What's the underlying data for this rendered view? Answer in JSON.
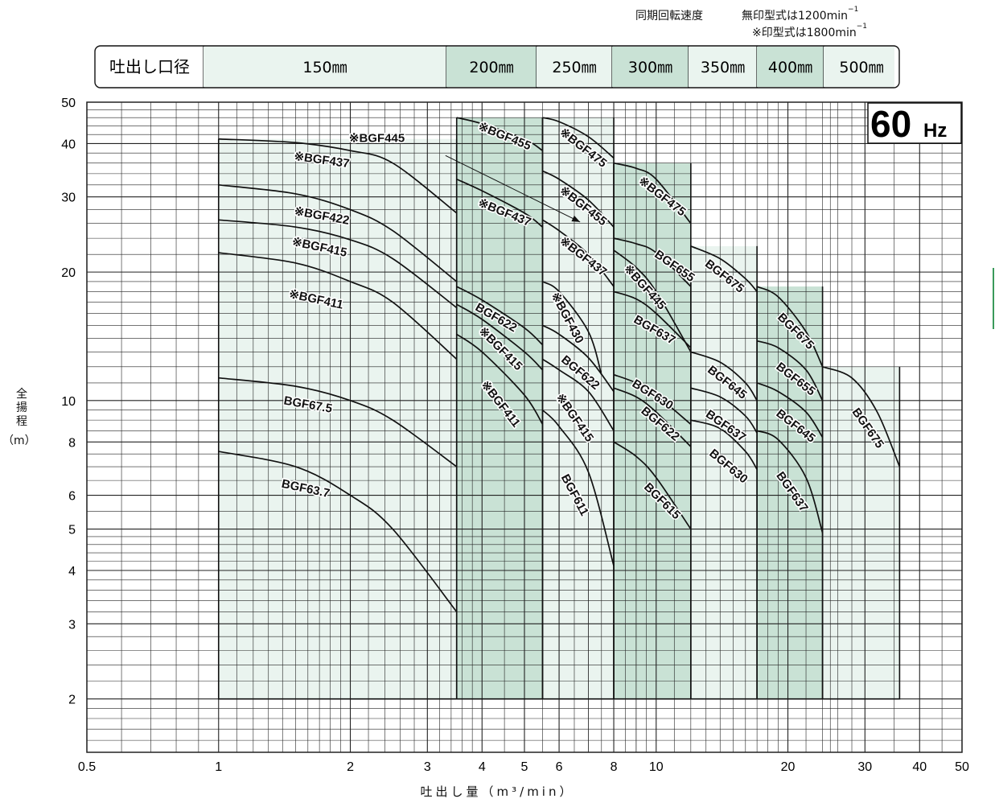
{
  "notes": {
    "speed_title": "同期回転速度",
    "speed_unmarked": "無印型式は1200min",
    "speed_marked": "※印型式は1800min",
    "speed_sup": "−1"
  },
  "header": {
    "label": "吐出し口径",
    "bores": [
      "150㎜",
      "200㎜",
      "250㎜",
      "300㎜",
      "350㎜",
      "400㎜",
      "500㎜"
    ]
  },
  "freq_badge": {
    "value": "60",
    "unit": "Hz"
  },
  "axes": {
    "ylabel_chars": [
      "全",
      "揚",
      "程"
    ],
    "ylabel_unit": "（m）",
    "xlabel": "吐出し量（m³/min）"
  },
  "colors": {
    "light_fill": "#eaf4ef",
    "dark_fill": "#c9e2d5",
    "grid": "#222222",
    "curve": "#111111"
  },
  "chart_data": {
    "type": "line",
    "x_scale": "log",
    "y_scale": "log",
    "xlim": [
      0.5,
      50
    ],
    "ylim": [
      1.5,
      50
    ],
    "x_ticks": [
      0.5,
      1,
      2,
      3,
      4,
      5,
      6,
      8,
      10,
      20,
      30,
      40,
      50
    ],
    "y_ticks": [
      2,
      3,
      4,
      5,
      6,
      8,
      10,
      20,
      30,
      40,
      50
    ],
    "grid": true,
    "bands": [
      {
        "bore": "150㎜",
        "x": [
          1,
          3.5
        ],
        "shade": "light",
        "top": 41
      },
      {
        "bore": "200㎜",
        "x": [
          3.5,
          5.5
        ],
        "shade": "dark",
        "top": 46
      },
      {
        "bore": "250㎜",
        "x": [
          5.5,
          8
        ],
        "shade": "light",
        "top": 46
      },
      {
        "bore": "300㎜",
        "x": [
          8,
          12
        ],
        "shade": "dark",
        "top": 36
      },
      {
        "bore": "350㎜",
        "x": [
          12,
          17
        ],
        "shade": "light",
        "top": 23
      },
      {
        "bore": "400㎜",
        "x": [
          17,
          24
        ],
        "shade": "dark",
        "top": 18.5
      },
      {
        "bore": "500㎜",
        "x": [
          24,
          36
        ],
        "shade": "light",
        "top": 12
      }
    ],
    "series": [
      {
        "name": "※BGF437",
        "x": [
          1,
          1.5,
          2,
          2.5,
          3.5
        ],
        "y": [
          41,
          40.2,
          38.5,
          36,
          27.5
        ]
      },
      {
        "name": "※BGF422",
        "x": [
          1,
          1.5,
          2,
          2.5,
          3.5
        ],
        "y": [
          32,
          30.5,
          28,
          25,
          19
        ]
      },
      {
        "name": "※BGF415",
        "x": [
          1,
          1.5,
          2,
          2.5,
          3.5
        ],
        "y": [
          26.5,
          25.5,
          23.8,
          21.5,
          16.5
        ]
      },
      {
        "name": "※BGF411",
        "x": [
          1,
          1.5,
          2,
          2.5,
          3.5
        ],
        "y": [
          22.2,
          21,
          19,
          17,
          12.5
        ]
      },
      {
        "name": "BGF67.5",
        "x": [
          1,
          1.5,
          2,
          2.5,
          3.5
        ],
        "y": [
          11.3,
          10.8,
          10,
          9,
          7
        ]
      },
      {
        "name": "BGF63.7",
        "x": [
          1,
          1.5,
          2,
          2.5,
          3.5
        ],
        "y": [
          7.6,
          7,
          6,
          5,
          3.2
        ]
      },
      {
        "name": "※BGF455",
        "x": [
          3.5,
          4,
          5,
          5.5
        ],
        "y": [
          46,
          44.5,
          41,
          38.5
        ]
      },
      {
        "name": "※BGF437",
        "x": [
          3.5,
          4,
          5,
          5.5
        ],
        "y": [
          33,
          31,
          27.5,
          25.5
        ]
      },
      {
        "name": "BGF622",
        "x": [
          3.5,
          4,
          5,
          5.5
        ],
        "y": [
          18.5,
          17.2,
          14.8,
          13.5
        ]
      },
      {
        "name": "※BGF415",
        "x": [
          3.5,
          4,
          5,
          5.5
        ],
        "y": [
          16.8,
          15.5,
          13,
          11.8
        ]
      },
      {
        "name": "※BGF411",
        "x": [
          3.5,
          4,
          5,
          5.5
        ],
        "y": [
          14.3,
          13,
          10.3,
          8.8
        ]
      },
      {
        "name": "※BGF475",
        "x": [
          5.5,
          6,
          7,
          8
        ],
        "y": [
          46,
          45,
          41.5,
          37
        ]
      },
      {
        "name": "※BGF455",
        "x": [
          5.5,
          6,
          7,
          8
        ],
        "y": [
          34.5,
          33,
          29.5,
          25.5
        ]
      },
      {
        "name": "※BGF437",
        "x": [
          5.5,
          6,
          7,
          8
        ],
        "y": [
          26.5,
          25,
          22,
          18.5
        ]
      },
      {
        "name": "※BGF430",
        "x": [
          5.5,
          6,
          7,
          7.5
        ],
        "y": [
          19,
          18,
          14.5,
          11.5
        ]
      },
      {
        "name": "BGF622",
        "x": [
          5.5,
          6,
          7,
          8
        ],
        "y": [
          15,
          14.3,
          12.6,
          10.5
        ]
      },
      {
        "name": "※BGF415",
        "x": [
          5.5,
          6,
          7,
          8
        ],
        "y": [
          12.5,
          11.8,
          10.5,
          8.5
        ]
      },
      {
        "name": "BGF611",
        "x": [
          5.5,
          6,
          7,
          8
        ],
        "y": [
          9.5,
          8.7,
          6.8,
          4.1
        ]
      },
      {
        "name": "※BGF475",
        "x": [
          8,
          9,
          10,
          12
        ],
        "y": [
          36,
          35,
          33,
          26
        ]
      },
      {
        "name": "BGF655",
        "x": [
          8,
          9,
          10,
          12
        ],
        "y": [
          24,
          23.3,
          22.2,
          18.5
        ]
      },
      {
        "name": "※BGF445",
        "x": [
          8,
          9,
          10,
          12
        ],
        "y": [
          22.5,
          20.5,
          18,
          13
        ]
      },
      {
        "name": "BGF637",
        "x": [
          8,
          9,
          10,
          12
        ],
        "y": [
          18,
          17.3,
          16,
          13.3
        ]
      },
      {
        "name": "BGF630",
        "x": [
          8,
          9,
          10,
          12
        ],
        "y": [
          11.5,
          11,
          10.3,
          8.8
        ]
      },
      {
        "name": "BGF622",
        "x": [
          8,
          9,
          10,
          12
        ],
        "y": [
          10.7,
          10.2,
          9.4,
          7.8
        ]
      },
      {
        "name": "BGF615",
        "x": [
          8,
          9,
          10,
          12
        ],
        "y": [
          8,
          7.4,
          6.6,
          5
        ]
      },
      {
        "name": "BGF675",
        "x": [
          12,
          14,
          16,
          17
        ],
        "y": [
          23,
          21.5,
          19.3,
          18
        ]
      },
      {
        "name": "BGF645",
        "x": [
          12,
          14,
          16,
          17
        ],
        "y": [
          13,
          12.3,
          11,
          10
        ]
      },
      {
        "name": "BGF637",
        "x": [
          12,
          14,
          16,
          17
        ],
        "y": [
          10.7,
          10.2,
          9.2,
          8.4
        ]
      },
      {
        "name": "BGF630",
        "x": [
          12,
          14,
          16,
          17
        ],
        "y": [
          9,
          8.6,
          7.6,
          6.9
        ]
      },
      {
        "name": "BGF675",
        "x": [
          17,
          19,
          22,
          24
        ],
        "y": [
          18.5,
          17.5,
          14.5,
          12
        ]
      },
      {
        "name": "BGF655",
        "x": [
          17,
          19,
          22,
          24
        ],
        "y": [
          13.8,
          13.3,
          11.8,
          10
        ]
      },
      {
        "name": "BGF645",
        "x": [
          17,
          19,
          22,
          24
        ],
        "y": [
          11,
          10.5,
          9.4,
          8.2
        ]
      },
      {
        "name": "BGF637",
        "x": [
          17,
          19,
          22,
          24
        ],
        "y": [
          8.5,
          8.1,
          6.6,
          4.9
        ]
      },
      {
        "name": "BGF675",
        "x": [
          24,
          28,
          32,
          36
        ],
        "y": [
          12,
          11.3,
          9.4,
          7
        ]
      }
    ],
    "curve_labels": [
      {
        "text": "※BGF437",
        "x": 1.72,
        "y": 36.5,
        "angle": 8
      },
      {
        "text": "※BGF445",
        "x": 2.3,
        "y": 41,
        "angle": 0
      },
      {
        "text": "※BGF422",
        "x": 1.72,
        "y": 27,
        "angle": 10
      },
      {
        "text": "※BGF415",
        "x": 1.7,
        "y": 22.8,
        "angle": 12
      },
      {
        "text": "※BGF411",
        "x": 1.67,
        "y": 17.2,
        "angle": 12
      },
      {
        "text": "BGF67.5",
        "x": 1.6,
        "y": 9.75,
        "angle": 10
      },
      {
        "text": "BGF63.7",
        "x": 1.58,
        "y": 6.2,
        "angle": 12
      },
      {
        "text": "※BGF455",
        "x": 4.5,
        "y": 41.5,
        "angle": 22
      },
      {
        "text": "※BGF437",
        "x": 4.5,
        "y": 27.5,
        "angle": 22
      },
      {
        "text": "BGF622",
        "x": 4.3,
        "y": 15.6,
        "angle": 30
      },
      {
        "text": "※BGF415",
        "x": 4.4,
        "y": 13.2,
        "angle": 45
      },
      {
        "text": "※BGF411",
        "x": 4.4,
        "y": 9.8,
        "angle": 52
      },
      {
        "text": "※BGF475",
        "x": 6.8,
        "y": 39,
        "angle": 38
      },
      {
        "text": "※BGF455",
        "x": 6.8,
        "y": 28.5,
        "angle": 38
      },
      {
        "text": "※BGF437",
        "x": 6.8,
        "y": 21.7,
        "angle": 38
      },
      {
        "text": "※BGF430",
        "x": 6.25,
        "y": 15.6,
        "angle": 62
      },
      {
        "text": "BGF622",
        "x": 6.7,
        "y": 11.6,
        "angle": 40
      },
      {
        "text": "※BGF415",
        "x": 6.5,
        "y": 9.1,
        "angle": 55
      },
      {
        "text": "BGF611",
        "x": 6.5,
        "y": 6,
        "angle": 62
      },
      {
        "text": "※BGF475",
        "x": 10.3,
        "y": 30,
        "angle": 38
      },
      {
        "text": "BGF655",
        "x": 11,
        "y": 20.6,
        "angle": 35
      },
      {
        "text": "※BGF445",
        "x": 9.4,
        "y": 18.4,
        "angle": 48
      },
      {
        "text": "BGF637",
        "x": 9.9,
        "y": 14.6,
        "angle": 30
      },
      {
        "text": "BGF630",
        "x": 9.8,
        "y": 10.3,
        "angle": 32
      },
      {
        "text": "BGF622",
        "x": 10.2,
        "y": 8.8,
        "angle": 40
      },
      {
        "text": "BGF615",
        "x": 10.3,
        "y": 5.8,
        "angle": 45
      },
      {
        "text": "BGF675",
        "x": 14.3,
        "y": 19.5,
        "angle": 38
      },
      {
        "text": "BGF645",
        "x": 14.5,
        "y": 11,
        "angle": 38
      },
      {
        "text": "BGF637",
        "x": 14.4,
        "y": 8.7,
        "angle": 35
      },
      {
        "text": "BGF630",
        "x": 14.6,
        "y": 7,
        "angle": 40
      },
      {
        "text": "BGF675",
        "x": 20.8,
        "y": 14.5,
        "angle": 45
      },
      {
        "text": "BGF655",
        "x": 20.8,
        "y": 11.2,
        "angle": 38
      },
      {
        "text": "BGF645",
        "x": 20.8,
        "y": 8.7,
        "angle": 38
      },
      {
        "text": "BGF637",
        "x": 20.4,
        "y": 6.1,
        "angle": 55
      },
      {
        "text": "BGF675",
        "x": 30.4,
        "y": 8.6,
        "angle": 55
      }
    ],
    "annotations": [
      {
        "text": "※BGF445",
        "arrow_from": [
          3.3,
          37.5
        ],
        "arrow_to": [
          6.7,
          26.2
        ]
      }
    ]
  }
}
